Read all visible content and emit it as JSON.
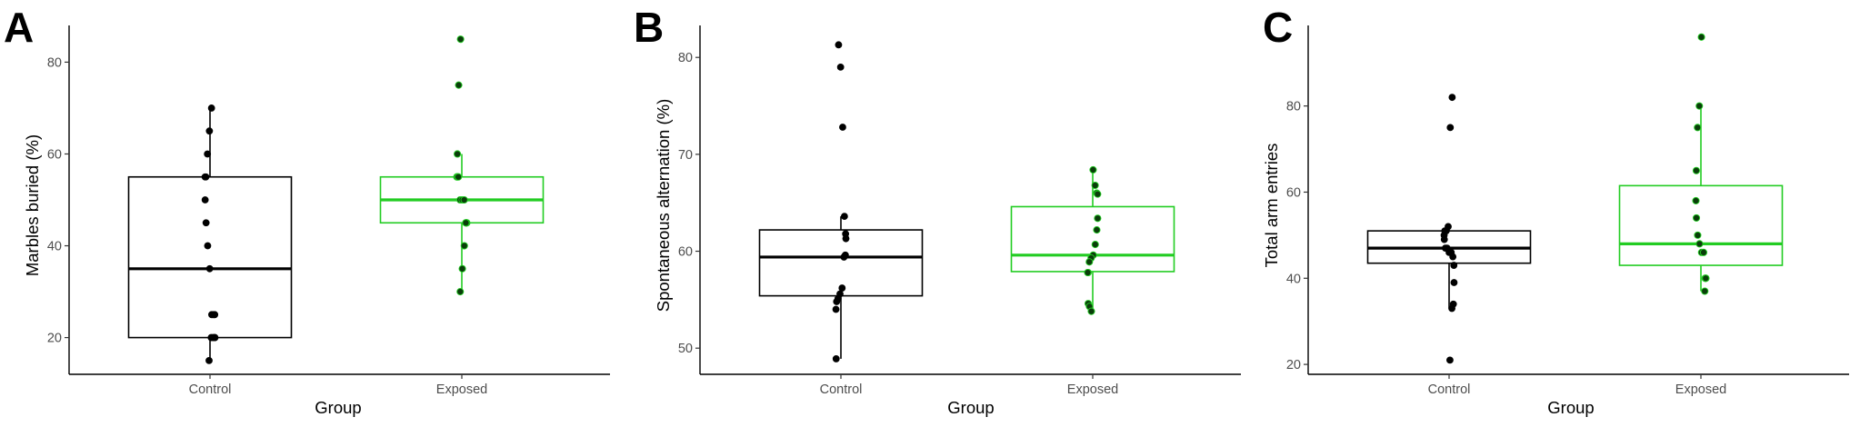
{
  "colors": {
    "control": "#000000",
    "exposed": "#22cc22",
    "exposed_point_fill": "#0a3d0a"
  },
  "chart_data": [
    {
      "panel": "A",
      "type": "box",
      "xlabel": "Group",
      "ylabel": "Marbles buried (%)",
      "categories": [
        "Control",
        "Exposed"
      ],
      "ylim": [
        12,
        88
      ],
      "yticks": [
        20,
        40,
        60,
        80
      ],
      "boxes": [
        {
          "group": "Control",
          "q1": 20,
          "median": 35,
          "q3": 55,
          "whisker_low": 15,
          "whisker_high": 70,
          "points": [
            70,
            65,
            60,
            55,
            55,
            50,
            45,
            40,
            35,
            25,
            25,
            25,
            20,
            20,
            20,
            20,
            15
          ]
        },
        {
          "group": "Exposed",
          "q1": 45,
          "median": 50,
          "q3": 55,
          "whisker_low": 30,
          "whisker_high": 60,
          "points": [
            85,
            75,
            60,
            55,
            55,
            55,
            50,
            50,
            50,
            45,
            45,
            45,
            45,
            40,
            35,
            30
          ]
        }
      ]
    },
    {
      "panel": "B",
      "type": "box",
      "xlabel": "Group",
      "ylabel": "Spontaneous alternation (%)",
      "categories": [
        "Control",
        "Exposed"
      ],
      "ylim": [
        47.3,
        83.3
      ],
      "yticks": [
        50,
        60,
        70,
        80
      ],
      "boxes": [
        {
          "group": "Control",
          "q1": 55.4,
          "median": 59.4,
          "q3": 62.2,
          "whisker_low": 48.9,
          "whisker_high": 63.6,
          "points": [
            81.3,
            79.0,
            72.8,
            63.6,
            61.8,
            61.3,
            59.6,
            59.4,
            56.2,
            55.6,
            55.1,
            54.8,
            54.0,
            48.9
          ]
        },
        {
          "group": "Exposed",
          "q1": 57.9,
          "median": 59.6,
          "q3": 64.6,
          "whisker_low": 53.8,
          "whisker_high": 68.4,
          "points": [
            68.4,
            66.8,
            66.0,
            65.9,
            63.4,
            62.2,
            60.7,
            59.6,
            59.3,
            58.9,
            57.8,
            57.8,
            54.6,
            54.3,
            53.8
          ]
        }
      ]
    },
    {
      "panel": "C",
      "type": "box",
      "xlabel": "Group",
      "ylabel": "Total arm entries",
      "categories": [
        "Control",
        "Exposed"
      ],
      "ylim": [
        17.7,
        98.7
      ],
      "yticks": [
        20,
        40,
        60,
        80
      ],
      "boxes": [
        {
          "group": "Control",
          "q1": 43.5,
          "median": 47,
          "q3": 51,
          "whisker_low": 33,
          "whisker_high": 52,
          "points": [
            82,
            75,
            52,
            51,
            51,
            50,
            49,
            47,
            47,
            46,
            46,
            45,
            43,
            39,
            34,
            33,
            21
          ]
        },
        {
          "group": "Exposed",
          "q1": 43,
          "median": 48,
          "q3": 61.5,
          "whisker_low": 37,
          "whisker_high": 80,
          "points": [
            96,
            80,
            75,
            65,
            58,
            54,
            50,
            48,
            46,
            46,
            40,
            40,
            40,
            37
          ]
        }
      ]
    }
  ]
}
